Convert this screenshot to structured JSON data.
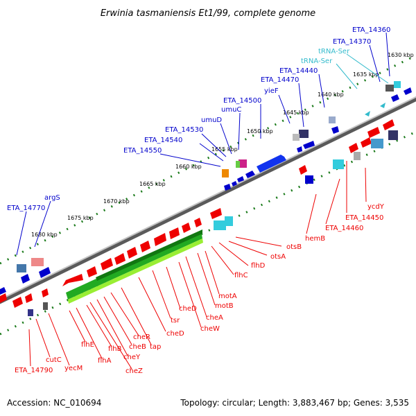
{
  "title": "Erwinia tasmaniensis Et1/99, complete genome",
  "footer": {
    "accession": "Accession: NC_010694",
    "topology": "Topology: circular; Length: 3,883,467 bp; Genes: 3,535"
  },
  "colors": {
    "forward_gene": "#0000dd",
    "reverse_gene": "#ee0000",
    "trna": "#33bbcc",
    "backbone": "#8a8a8a",
    "tick": "#1a7a1a",
    "operon": "#22aa22"
  },
  "kbp_ticks": [
    "1630 kbp",
    "1635 kbp",
    "1640 kbp",
    "1645 kbp",
    "1650 kbp",
    "1655 kbp",
    "1660 kbp",
    "1665 kbp",
    "1670 kbp",
    "1675 kbp",
    "1680 kbp"
  ],
  "upper_labels": [
    "ETA_14360",
    "ETA_14370",
    "tRNA-Ser",
    "tRNA-Ser",
    "ETA_14440",
    "ETA_14470",
    "yieF",
    "ETA_14500",
    "umuC",
    "umuD",
    "ETA_14530",
    "ETA_14540",
    "ETA_14550",
    "argS",
    "ETA_14770"
  ],
  "lower_labels": [
    "ycdY",
    "ETA_14450",
    "ETA_14460",
    "hemB",
    "otsB",
    "otsA",
    "flhD",
    "flhC",
    "motA",
    "motB",
    "cheA",
    "cheW",
    "cheD",
    "tsr",
    "cheD",
    "tap",
    "cheR",
    "cheB",
    "cheY",
    "cheZ",
    "flhB",
    "flhA",
    "flhE",
    "yecM",
    "cutC",
    "ETA_14790"
  ]
}
